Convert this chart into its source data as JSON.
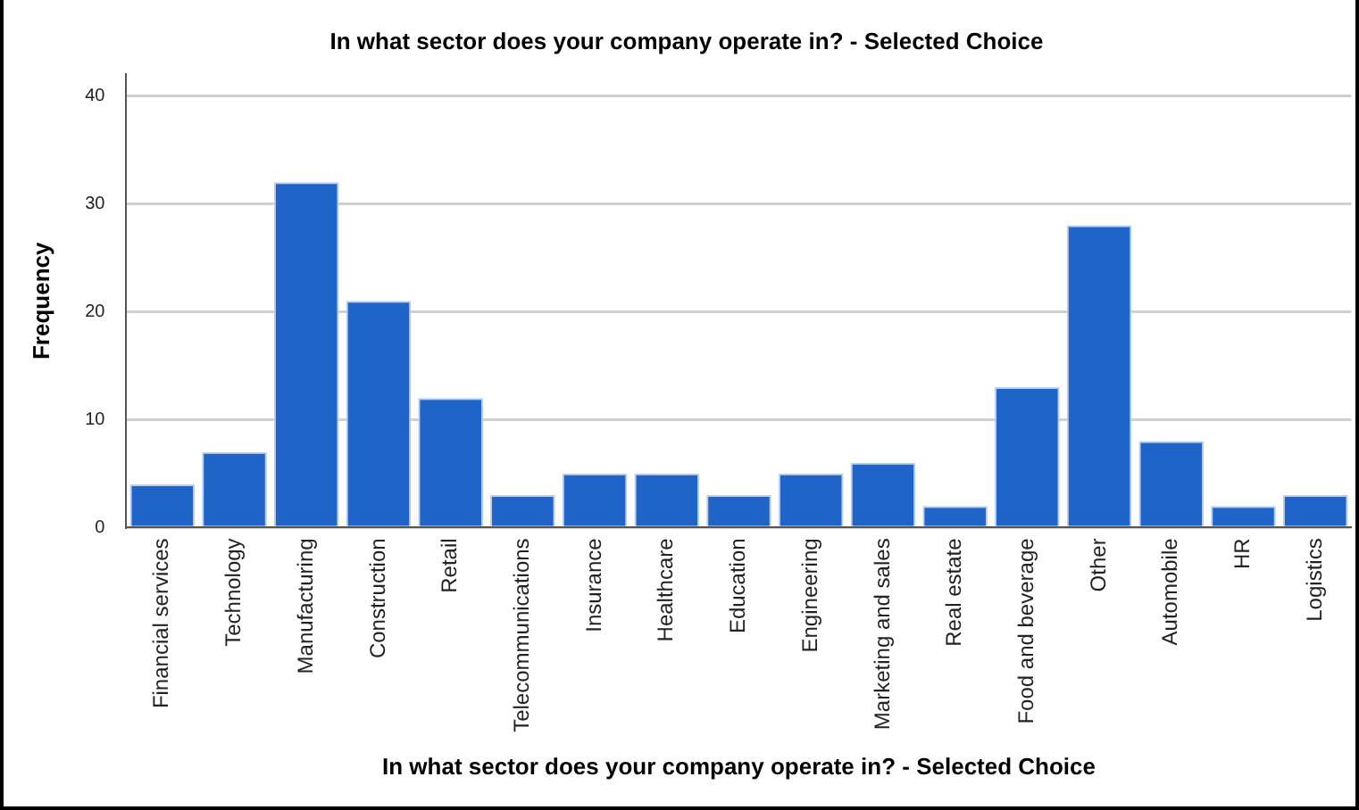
{
  "chart_data": {
    "type": "bar",
    "title": "In what sector does your company operate in? - Selected Choice",
    "xlabel": "In what sector does your company operate in? - Selected Choice",
    "ylabel": "Frequency",
    "categories": [
      "Financial services",
      "Technology",
      "Manufacturing",
      "Construction",
      "Retail",
      "Telecommunications",
      "Insurance",
      "Healthcare",
      "Education",
      "Engineering",
      "Marketing and sales",
      "Real estate",
      "Food and beverage",
      "Other",
      "Automobile",
      "HR",
      "Logistics"
    ],
    "values": [
      4,
      7,
      32,
      21,
      12,
      3,
      5,
      5,
      3,
      5,
      6,
      2,
      13,
      28,
      8,
      2,
      3
    ],
    "color": "#1f64c8",
    "ylim": [
      0,
      42
    ],
    "yticks": [
      0,
      10,
      20,
      30,
      40
    ],
    "grid": "y",
    "legend": false
  }
}
